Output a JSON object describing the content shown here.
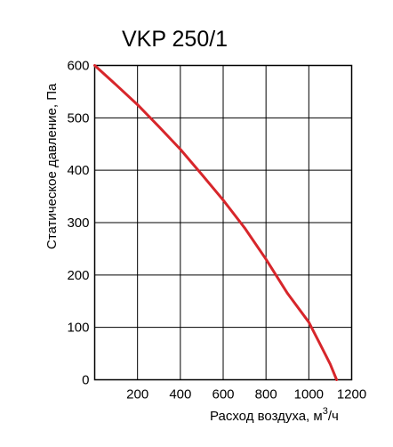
{
  "chart_data": {
    "type": "line",
    "title": "VKP 250/1",
    "xlabel": "Расход воздуха, м",
    "xlabel_sup": "3",
    "xlabel_tail": "/ч",
    "ylabel": "Статическое давление, Па",
    "xlim": [
      0,
      1200
    ],
    "ylim": [
      0,
      600
    ],
    "x_ticks": [
      "200",
      "400",
      "600",
      "800",
      "1000",
      "1200"
    ],
    "y_ticks": [
      "0",
      "100",
      "200",
      "300",
      "400",
      "500",
      "600"
    ],
    "grid": true,
    "series": [
      {
        "color": "#d7262b",
        "x": [
          0,
          100,
          200,
          300,
          400,
          500,
          600,
          700,
          800,
          900,
          1000,
          1050,
          1100,
          1130
        ],
        "y": [
          600,
          563,
          525,
          483,
          440,
          392,
          343,
          290,
          230,
          165,
          110,
          70,
          30,
          0
        ]
      }
    ]
  }
}
